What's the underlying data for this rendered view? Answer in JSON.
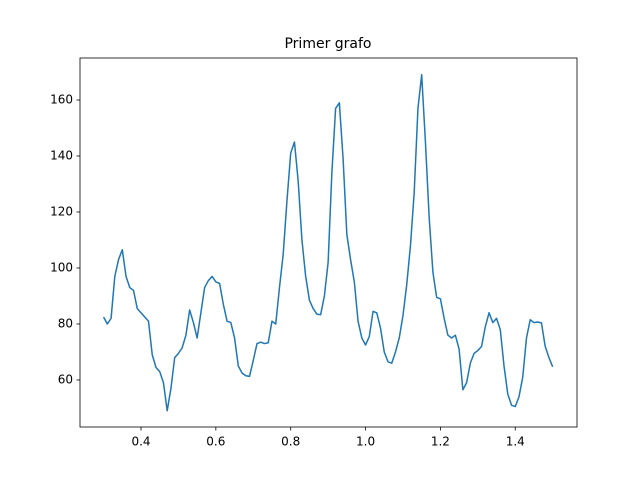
{
  "chart_data": {
    "type": "line",
    "title": "Primer grafo",
    "x": [
      0.3,
      0.31,
      0.32,
      0.33,
      0.34,
      0.35,
      0.36,
      0.37,
      0.38,
      0.39,
      0.4,
      0.41,
      0.42,
      0.43,
      0.44,
      0.45,
      0.46,
      0.47,
      0.48,
      0.49,
      0.5,
      0.51,
      0.52,
      0.53,
      0.54,
      0.55,
      0.56,
      0.57,
      0.58,
      0.59,
      0.6,
      0.61,
      0.62,
      0.63,
      0.64,
      0.65,
      0.66,
      0.67,
      0.68,
      0.69,
      0.7,
      0.71,
      0.72,
      0.73,
      0.74,
      0.75,
      0.76,
      0.77,
      0.78,
      0.79,
      0.8,
      0.81,
      0.82,
      0.83,
      0.84,
      0.85,
      0.86,
      0.87,
      0.88,
      0.89,
      0.9,
      0.91,
      0.92,
      0.93,
      0.94,
      0.95,
      0.96,
      0.97,
      0.98,
      0.99,
      1.0,
      1.01,
      1.02,
      1.03,
      1.04,
      1.05,
      1.06,
      1.07,
      1.08,
      1.09,
      1.1,
      1.11,
      1.12,
      1.13,
      1.14,
      1.15,
      1.16,
      1.17,
      1.18,
      1.19,
      1.2,
      1.21,
      1.22,
      1.23,
      1.24,
      1.25,
      1.26,
      1.27,
      1.28,
      1.29,
      1.3,
      1.31,
      1.32,
      1.33,
      1.34,
      1.35,
      1.36,
      1.37,
      1.38,
      1.39,
      1.4,
      1.41,
      1.42,
      1.43,
      1.44,
      1.45,
      1.46,
      1.47,
      1.48,
      1.49,
      1.5
    ],
    "series": [
      {
        "color": "#1f77b4",
        "values": [
          82.5,
          80,
          82,
          97,
          103,
          106.5,
          97,
          93,
          92,
          85.5,
          84,
          82.5,
          81,
          69,
          64.5,
          63,
          59,
          49,
          57,
          68,
          69.5,
          71.5,
          76,
          85,
          80.5,
          75,
          84,
          93,
          95.5,
          97,
          95,
          94.5,
          87,
          81,
          80.5,
          75,
          65,
          62.5,
          61.5,
          61.3,
          67,
          73,
          73.5,
          73,
          73.3,
          81,
          80,
          93,
          105,
          124,
          141,
          145,
          131,
          110,
          97,
          88.5,
          85.5,
          83.5,
          83.3,
          90,
          102,
          134,
          157,
          159,
          139,
          112,
          103,
          95,
          81,
          75,
          72.5,
          75.5,
          84.5,
          84,
          78.5,
          70,
          66.5,
          66,
          70,
          75,
          83,
          94,
          108,
          127,
          157,
          169,
          145,
          118,
          98.5,
          89.5,
          89,
          82,
          76,
          75,
          76,
          71,
          56.5,
          59,
          66,
          69.5,
          70.5,
          72,
          79,
          84,
          80.5,
          82,
          78,
          65,
          55,
          51,
          50.5,
          54,
          61,
          75,
          81.5,
          80.5,
          80.7,
          80.4,
          72,
          68,
          64.7
        ]
      }
    ],
    "xlim": [
      0.237,
      1.565
    ],
    "ylim": [
      43.2,
      175
    ],
    "xticks": [
      0.4,
      0.6,
      0.8,
      {
        "value": 1,
        "label": "1.0"
      },
      1.2,
      1.4
    ],
    "yticks": [
      60,
      80,
      100,
      120,
      140,
      160
    ]
  }
}
